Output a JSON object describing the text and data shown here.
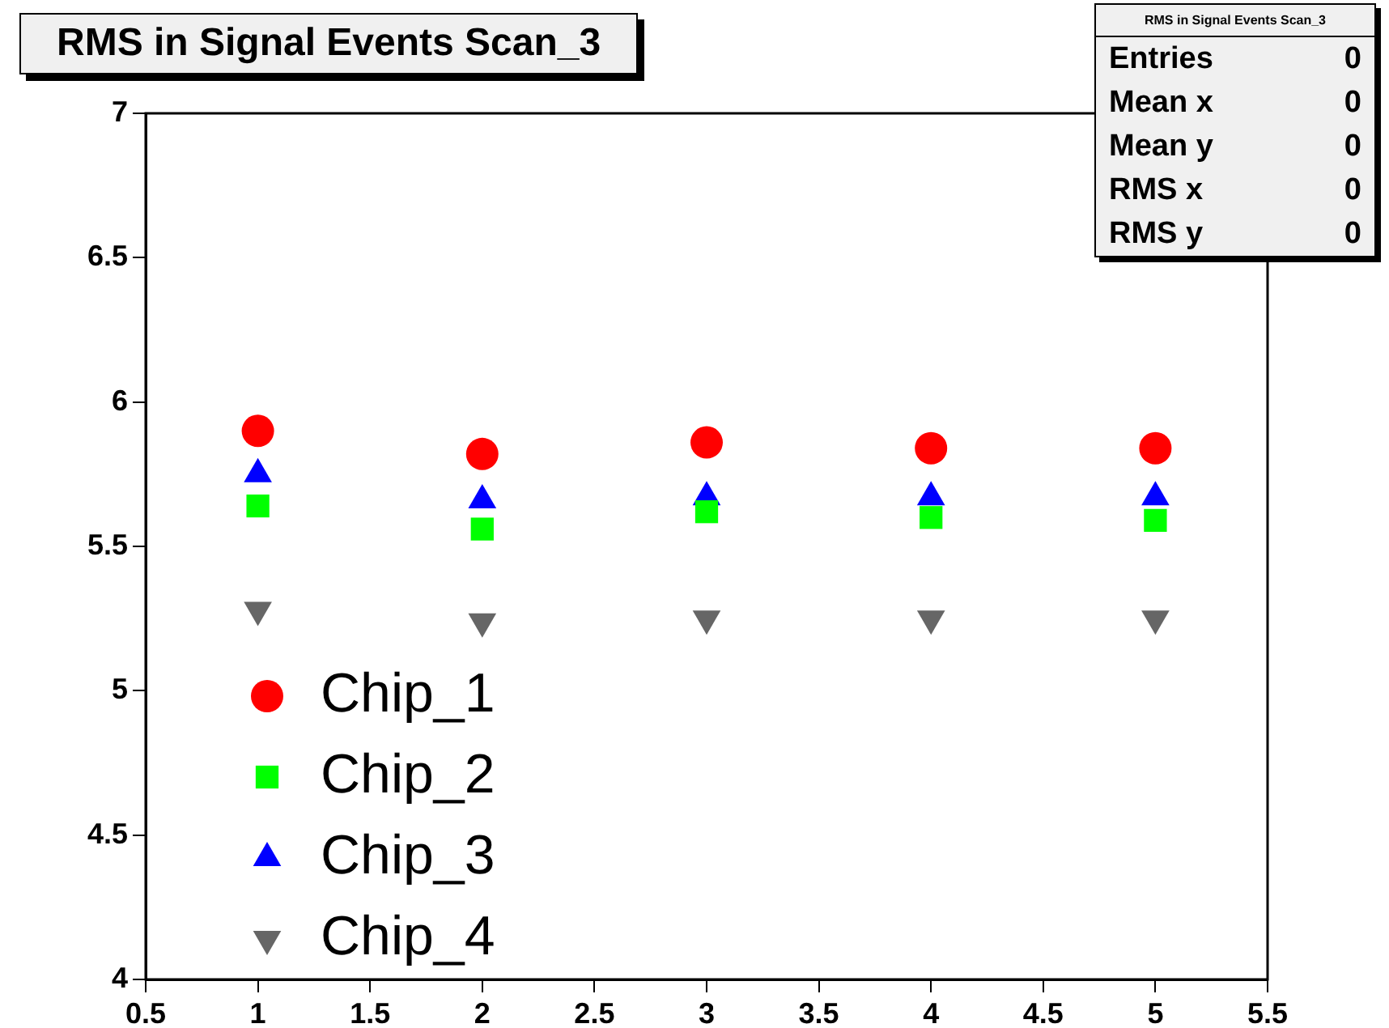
{
  "chart_data": {
    "type": "scatter",
    "title": "RMS in Signal Events Scan_3",
    "x": [
      1,
      2,
      3,
      4,
      5
    ],
    "series": [
      {
        "name": "Chip_1",
        "color": "#ff0000",
        "marker": "circle",
        "values": [
          5.9,
          5.82,
          5.86,
          5.84,
          5.84
        ]
      },
      {
        "name": "Chip_2",
        "color": "#00ff00",
        "marker": "square",
        "values": [
          5.64,
          5.56,
          5.62,
          5.6,
          5.59
        ]
      },
      {
        "name": "Chip_3",
        "color": "#0000ff",
        "marker": "triangle",
        "values": [
          5.75,
          5.66,
          5.67,
          5.67,
          5.67
        ]
      },
      {
        "name": "Chip_4",
        "color": "#666666",
        "marker": "triangle-down",
        "values": [
          5.28,
          5.24,
          5.25,
          5.25,
          5.25
        ]
      }
    ],
    "xlim": [
      0.5,
      5.5
    ],
    "xticks": [
      0.5,
      1,
      1.5,
      2,
      2.5,
      3,
      3.5,
      4,
      4.5,
      5,
      5.5
    ],
    "ylim": [
      4,
      7
    ],
    "yticks": [
      4,
      4.5,
      5,
      5.5,
      6,
      6.5,
      7
    ],
    "grid": false,
    "legend": "bottom left",
    "annotations": [
      "RMS in Signal Events Scan_3",
      "Entries",
      "0",
      "Mean x",
      "0",
      "Mean y",
      "0",
      "RMS x",
      "0",
      "RMS y",
      "0"
    ]
  }
}
